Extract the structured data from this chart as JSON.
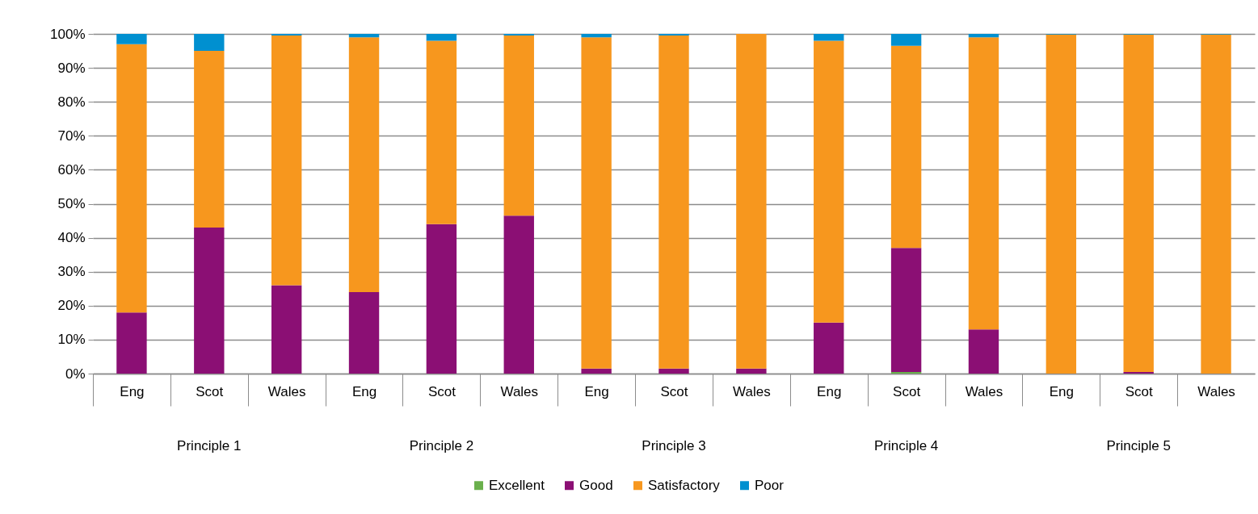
{
  "chart_data": {
    "type": "bar",
    "stacked": true,
    "categories": [
      "Eng",
      "Scot",
      "Wales",
      "Eng",
      "Scot",
      "Wales",
      "Eng",
      "Scot",
      "Wales",
      "Eng",
      "Scot",
      "Wales",
      "Eng",
      "Scot",
      "Wales"
    ],
    "annotations": [
      "Principle 1",
      "Principle 2",
      "Principle 3",
      "Principle 4",
      "Principle 5"
    ],
    "series": [
      {
        "name": "Excellent",
        "color": "#6ab04c",
        "values": [
          null,
          null,
          null,
          null,
          null,
          null,
          null,
          null,
          null,
          null,
          0.5,
          null,
          null,
          null,
          null
        ]
      },
      {
        "name": "Good",
        "color": "#8b0f74",
        "values": [
          18,
          43,
          26,
          24,
          44,
          46.5,
          1.5,
          1.5,
          1.5,
          15,
          36.5,
          13,
          null,
          0.5,
          null
        ]
      },
      {
        "name": "Satisfactory",
        "color": "#f7971e",
        "values": [
          79,
          52,
          73.5,
          75,
          54,
          53,
          97.5,
          98,
          98.5,
          83,
          59.5,
          86,
          99.8,
          99.3,
          99.8
        ]
      },
      {
        "name": "Poor",
        "color": "#0090d0",
        "values": [
          3,
          5,
          0.5,
          1,
          2,
          0.5,
          1,
          0.5,
          null,
          2,
          3.5,
          1,
          0.2,
          0.2,
          0.2
        ]
      }
    ],
    "ylim": [
      0,
      100
    ],
    "yticks": [
      {
        "value": 0,
        "label": "0%"
      },
      {
        "value": 10,
        "label": "10%"
      },
      {
        "value": 20,
        "label": "20%"
      },
      {
        "value": 30,
        "label": "30%"
      },
      {
        "value": 40,
        "label": "40%"
      },
      {
        "value": 50,
        "label": "50%"
      },
      {
        "value": 60,
        "label": "60%"
      },
      {
        "value": 70,
        "label": "70%"
      },
      {
        "value": 80,
        "label": "80%"
      },
      {
        "value": 90,
        "label": "90%"
      },
      {
        "value": 100,
        "label": "100%"
      }
    ],
    "grid": true,
    "legend": "bottom"
  }
}
